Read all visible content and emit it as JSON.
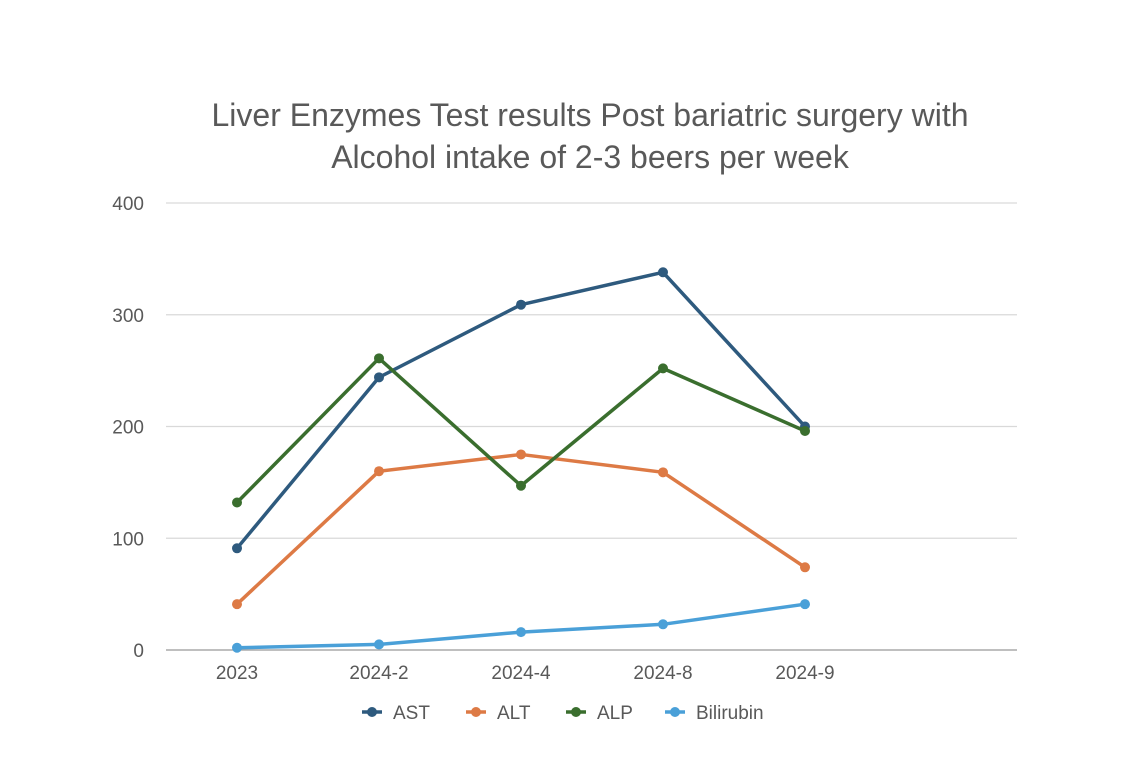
{
  "chart_data": {
    "type": "line",
    "title_lines": [
      "Liver Enzymes Test results Post bariatric surgery with",
      "Alcohol intake of 2-3 beers per week"
    ],
    "categories": [
      "2023",
      "2024-2",
      "2024-4",
      "2024-8",
      "2024-9"
    ],
    "y_ticks": [
      "0",
      "100",
      "200",
      "300",
      "400"
    ],
    "ylim": [
      0,
      400
    ],
    "grid": true,
    "legend_position": "bottom",
    "series": [
      {
        "name": "AST",
        "color": "#2e5a7e",
        "values": [
          91,
          244,
          309,
          338,
          200
        ]
      },
      {
        "name": "ALT",
        "color": "#dd7a45",
        "values": [
          41,
          160,
          175,
          159,
          74
        ]
      },
      {
        "name": "ALP",
        "color": "#3a6e2e",
        "values": [
          132,
          261,
          147,
          252,
          196
        ]
      },
      {
        "name": "Bilirubin",
        "color": "#4aa0d8",
        "values": [
          2,
          5,
          16,
          23,
          41
        ]
      }
    ]
  }
}
